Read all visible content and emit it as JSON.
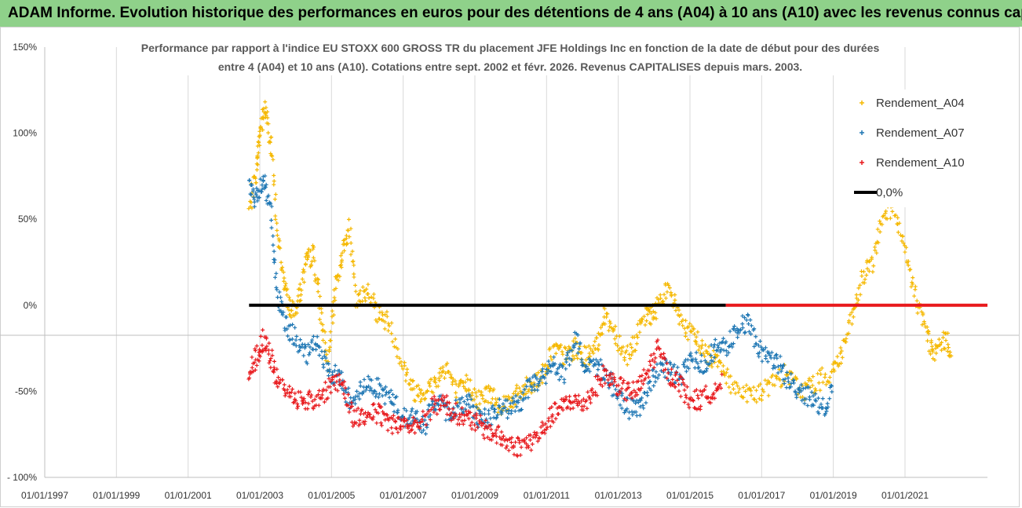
{
  "banner": {
    "text": "ADAM Informe. Evolution historique des performances en euros pour des détentions de 4 ans (A04) à 10 ans (A10) avec les revenus connus capitalisés"
  },
  "chart_data": {
    "type": "scatter",
    "title_line1": "Performance par rapport à l'indice EU STOXX 600 GROSS TR  du placement JFE Holdings Inc en fonction de la date de début pour des durées",
    "title_line2": "entre 4 (A04) et 10 ans (A10). Cotations entre sept. 2002 et févr. 2026. Revenus CAPITALISES depuis mars. 2003.",
    "x_axis": {
      "min_year": 1997,
      "max_year": 2023.3,
      "tick_labels": [
        "01/01/1997",
        "01/01/1999",
        "01/01/2001",
        "01/01/2003",
        "01/01/2005",
        "01/01/2007",
        "01/01/2009",
        "01/01/2011",
        "01/01/2013",
        "01/01/2015",
        "01/01/2017",
        "01/01/2019",
        "01/01/2021"
      ],
      "tick_years": [
        1997,
        1999,
        2001,
        2003,
        2005,
        2007,
        2009,
        2011,
        2013,
        2015,
        2017,
        2019,
        2021
      ]
    },
    "y_axis": {
      "min": -100,
      "max": 150,
      "tick_values": [
        150,
        100,
        50,
        0,
        -50,
        -100
      ],
      "tick_labels": [
        "150%",
        "100%",
        "50%",
        "0%",
        "-50%",
        "- 100%"
      ]
    },
    "colors": {
      "A04": "#f5b800",
      "A07": "#1f77b4",
      "A10": "#e8191c",
      "zero": "#000000"
    },
    "legend": [
      {
        "key": "A04",
        "label": "Rendement_A04",
        "marker": "+"
      },
      {
        "key": "A07",
        "label": "Rendement_A07",
        "marker": "+"
      },
      {
        "key": "A10",
        "label": "Rendement_A10",
        "marker": "+"
      },
      {
        "key": "zero",
        "label": "0,0%",
        "marker": "line"
      }
    ],
    "series": [
      {
        "name": "Rendement_A04",
        "key": "A04",
        "points": [
          [
            2002.7,
            55
          ],
          [
            2002.9,
            78
          ],
          [
            2003.0,
            100
          ],
          [
            2003.15,
            115
          ],
          [
            2003.3,
            95
          ],
          [
            2003.5,
            40
          ],
          [
            2003.7,
            10
          ],
          [
            2003.9,
            -5
          ],
          [
            2004.1,
            5
          ],
          [
            2004.3,
            25
          ],
          [
            2004.5,
            30
          ],
          [
            2004.7,
            -5
          ],
          [
            2004.9,
            -35
          ],
          [
            2005.1,
            10
          ],
          [
            2005.3,
            30
          ],
          [
            2005.5,
            45
          ],
          [
            2005.7,
            0
          ],
          [
            2006.0,
            10
          ],
          [
            2006.3,
            -5
          ],
          [
            2006.6,
            -10
          ],
          [
            2007.0,
            -35
          ],
          [
            2007.3,
            -50
          ],
          [
            2007.6,
            -50
          ],
          [
            2007.9,
            -45
          ],
          [
            2008.2,
            -35
          ],
          [
            2008.5,
            -52
          ],
          [
            2008.8,
            -45
          ],
          [
            2009.1,
            -55
          ],
          [
            2009.4,
            -50
          ],
          [
            2009.7,
            -58
          ],
          [
            2010.0,
            -55
          ],
          [
            2010.3,
            -50
          ],
          [
            2010.6,
            -45
          ],
          [
            2010.9,
            -40
          ],
          [
            2011.2,
            -25
          ],
          [
            2011.5,
            -30
          ],
          [
            2011.8,
            -25
          ],
          [
            2012.1,
            -30
          ],
          [
            2012.4,
            -25
          ],
          [
            2012.6,
            -5
          ],
          [
            2012.9,
            -15
          ],
          [
            2013.2,
            -30
          ],
          [
            2013.5,
            -20
          ],
          [
            2013.8,
            -5
          ],
          [
            2014.0,
            -5
          ],
          [
            2014.3,
            10
          ],
          [
            2014.6,
            0
          ],
          [
            2014.9,
            -15
          ],
          [
            2015.2,
            -20
          ],
          [
            2015.5,
            -30
          ],
          [
            2015.8,
            -30
          ],
          [
            2016.1,
            -45
          ],
          [
            2016.5,
            -50
          ],
          [
            2016.9,
            -52
          ],
          [
            2017.3,
            -45
          ],
          [
            2017.7,
            -40
          ],
          [
            2018.1,
            -50
          ],
          [
            2018.5,
            -45
          ],
          [
            2018.9,
            -40
          ],
          [
            2019.2,
            -30
          ],
          [
            2019.5,
            -10
          ],
          [
            2019.8,
            15
          ],
          [
            2020.1,
            25
          ],
          [
            2020.4,
            55
          ],
          [
            2020.7,
            55
          ],
          [
            2021.0,
            30
          ],
          [
            2021.3,
            5
          ],
          [
            2021.6,
            -15
          ],
          [
            2021.8,
            -30
          ],
          [
            2022.1,
            -20
          ],
          [
            2022.3,
            -25
          ]
        ]
      },
      {
        "name": "Rendement_A07",
        "key": "A07",
        "points": [
          [
            2002.7,
            70
          ],
          [
            2002.9,
            60
          ],
          [
            2003.1,
            75
          ],
          [
            2003.3,
            55
          ],
          [
            2003.5,
            5
          ],
          [
            2003.7,
            -10
          ],
          [
            2004.0,
            -20
          ],
          [
            2004.3,
            -30
          ],
          [
            2004.6,
            -20
          ],
          [
            2004.9,
            -40
          ],
          [
            2005.2,
            -40
          ],
          [
            2005.5,
            -55
          ],
          [
            2005.8,
            -50
          ],
          [
            2006.1,
            -45
          ],
          [
            2006.4,
            -50
          ],
          [
            2006.7,
            -55
          ],
          [
            2007.0,
            -65
          ],
          [
            2007.3,
            -65
          ],
          [
            2007.6,
            -70
          ],
          [
            2007.9,
            -55
          ],
          [
            2008.2,
            -62
          ],
          [
            2008.5,
            -60
          ],
          [
            2008.8,
            -55
          ],
          [
            2009.1,
            -65
          ],
          [
            2009.4,
            -65
          ],
          [
            2009.7,
            -60
          ],
          [
            2010.0,
            -60
          ],
          [
            2010.3,
            -55
          ],
          [
            2010.6,
            -45
          ],
          [
            2010.9,
            -42
          ],
          [
            2011.2,
            -35
          ],
          [
            2011.5,
            -40
          ],
          [
            2011.8,
            -20
          ],
          [
            2012.1,
            -35
          ],
          [
            2012.4,
            -35
          ],
          [
            2012.7,
            -40
          ],
          [
            2013.0,
            -55
          ],
          [
            2013.3,
            -60
          ],
          [
            2013.6,
            -60
          ],
          [
            2013.9,
            -45
          ],
          [
            2014.2,
            -35
          ],
          [
            2014.5,
            -40
          ],
          [
            2014.8,
            -40
          ],
          [
            2015.1,
            -30
          ],
          [
            2015.4,
            -35
          ],
          [
            2015.7,
            -25
          ],
          [
            2016.0,
            -25
          ],
          [
            2016.3,
            -15
          ],
          [
            2016.6,
            -10
          ],
          [
            2016.9,
            -25
          ],
          [
            2017.2,
            -30
          ],
          [
            2017.5,
            -35
          ],
          [
            2017.8,
            -45
          ],
          [
            2018.1,
            -50
          ],
          [
            2018.4,
            -55
          ],
          [
            2018.7,
            -60
          ],
          [
            2019.0,
            -50
          ]
        ]
      },
      {
        "name": "Rendement_A10",
        "key": "A10",
        "points": [
          [
            2002.7,
            -40
          ],
          [
            2002.9,
            -30
          ],
          [
            2003.1,
            -20
          ],
          [
            2003.3,
            -30
          ],
          [
            2003.5,
            -45
          ],
          [
            2003.8,
            -50
          ],
          [
            2004.1,
            -55
          ],
          [
            2004.4,
            -55
          ],
          [
            2004.7,
            -55
          ],
          [
            2005.0,
            -45
          ],
          [
            2005.3,
            -45
          ],
          [
            2005.6,
            -65
          ],
          [
            2005.9,
            -65
          ],
          [
            2006.2,
            -62
          ],
          [
            2006.5,
            -66
          ],
          [
            2006.8,
            -70
          ],
          [
            2007.1,
            -68
          ],
          [
            2007.4,
            -70
          ],
          [
            2007.8,
            -60
          ],
          [
            2008.1,
            -55
          ],
          [
            2008.4,
            -62
          ],
          [
            2008.7,
            -65
          ],
          [
            2009.0,
            -68
          ],
          [
            2009.3,
            -72
          ],
          [
            2009.6,
            -75
          ],
          [
            2009.9,
            -80
          ],
          [
            2010.2,
            -82
          ],
          [
            2010.5,
            -80
          ],
          [
            2010.8,
            -75
          ],
          [
            2011.1,
            -65
          ],
          [
            2011.4,
            -60
          ],
          [
            2011.7,
            -55
          ],
          [
            2012.0,
            -58
          ],
          [
            2012.3,
            -50
          ],
          [
            2012.6,
            -40
          ],
          [
            2012.9,
            -45
          ],
          [
            2013.2,
            -50
          ],
          [
            2013.5,
            -50
          ],
          [
            2013.8,
            -40
          ],
          [
            2014.1,
            -25
          ],
          [
            2014.4,
            -40
          ],
          [
            2014.7,
            -45
          ],
          [
            2015.0,
            -55
          ],
          [
            2015.3,
            -55
          ],
          [
            2015.6,
            -50
          ],
          [
            2015.9,
            -45
          ]
        ]
      }
    ],
    "zero_lines": [
      {
        "key": "zero",
        "from_year": 2002.7,
        "to_year": 2016.0,
        "value": 0
      },
      {
        "key": "A10",
        "from_year": 2016.0,
        "to_year": 2023.3,
        "value": 0
      }
    ]
  }
}
